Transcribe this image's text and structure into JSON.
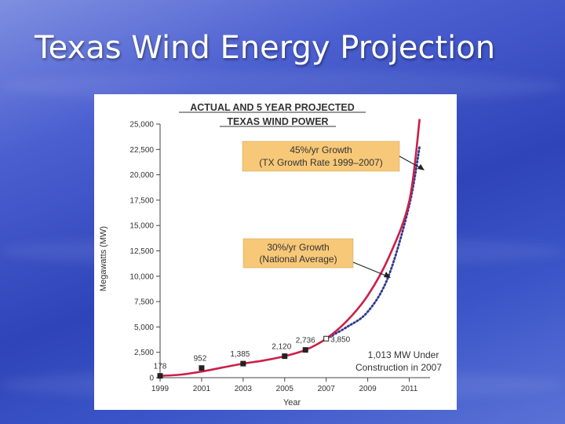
{
  "slide": {
    "title": "Texas Wind Energy Projection"
  },
  "colors": {
    "projection_45": "#cc1f47",
    "projection_30": "#2f3a8f",
    "callout_fill": "#f7c878",
    "marker": "#222222"
  },
  "chart_data": {
    "type": "line",
    "title_lines": [
      "ACTUAL AND 5 YEAR PROJECTED",
      "TEXAS WIND POWER"
    ],
    "xlabel": "Year",
    "ylabel": "Megawatts (MW)",
    "xlim": [
      1999,
      2012
    ],
    "ylim": [
      0,
      25000
    ],
    "xticks": [
      1999,
      2001,
      2003,
      2005,
      2007,
      2009,
      2011
    ],
    "yticks": [
      0,
      2500,
      5000,
      7500,
      10000,
      12500,
      15000,
      17500,
      20000,
      22500,
      25000
    ],
    "ytick_labels": [
      "0",
      "2,500",
      "5,000",
      "7,500",
      "10,000",
      "12,500",
      "15,000",
      "17,500",
      "20,000",
      "22,500",
      "25,000"
    ],
    "grid": false,
    "actual": {
      "x": [
        1999,
        2001,
        2003,
        2005,
        2006,
        2007
      ],
      "values": [
        178,
        952,
        1385,
        2120,
        2736,
        3850
      ],
      "labels": [
        "178",
        "952",
        "1,385",
        "2,120",
        "2,736",
        "3,850"
      ]
    },
    "series": [
      {
        "x": [
          1999,
          2000,
          2001,
          2002,
          2003,
          2004,
          2005,
          2006,
          2007,
          2008,
          2009,
          2010,
          2011,
          2011.5
        ],
        "values": [
          178,
          300,
          600,
          1000,
          1385,
          1700,
          2120,
          2736,
          3850,
          5600,
          8100,
          11800,
          17400,
          25500
        ],
        "style": "solid"
      },
      {
        "x": [
          2007,
          2008,
          2009,
          2010,
          2011,
          2011.5
        ],
        "values": [
          3850,
          5000,
          6500,
          10000,
          17000,
          22800
        ],
        "style": "dotted"
      }
    ],
    "annotations": [
      {
        "lines": [
          "45%/yr Growth",
          "(TX Growth Rate 1999–2007)"
        ]
      },
      {
        "lines": [
          "30%/yr Growth",
          "(National Average)"
        ]
      },
      {
        "lines": [
          "1,013 MW Under",
          "Construction in 2007"
        ]
      }
    ]
  }
}
